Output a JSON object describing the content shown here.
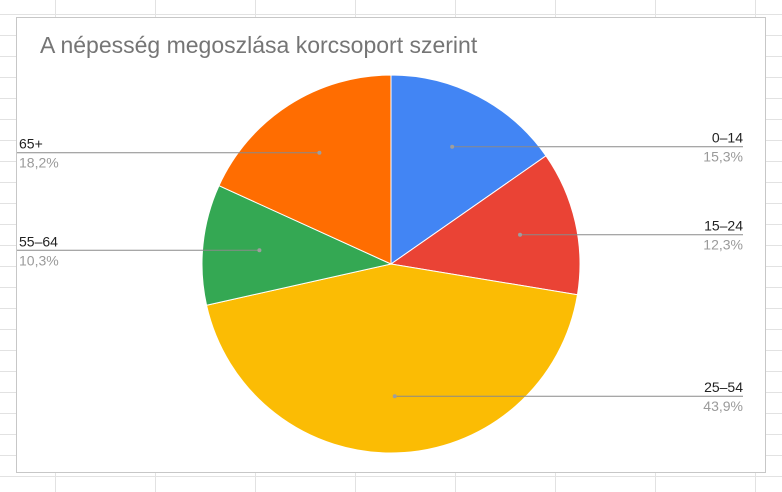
{
  "chart_data": {
    "type": "pie",
    "title": "A népesség megoszlása korcsoport szerint",
    "categories": [
      "0–14",
      "15–24",
      "25–54",
      "55–64",
      "65+"
    ],
    "values": [
      15.3,
      12.3,
      43.9,
      10.3,
      18.2
    ],
    "value_labels": [
      "15,3%",
      "12,3%",
      "43,9%",
      "10,3%",
      "18,2%"
    ],
    "colors": [
      "#4285f4",
      "#ea4335",
      "#fbbc04",
      "#34a853",
      "#ff6d01"
    ],
    "start_angle": "top",
    "direction": "clockwise",
    "legend": "labels-with-leader-lines"
  }
}
